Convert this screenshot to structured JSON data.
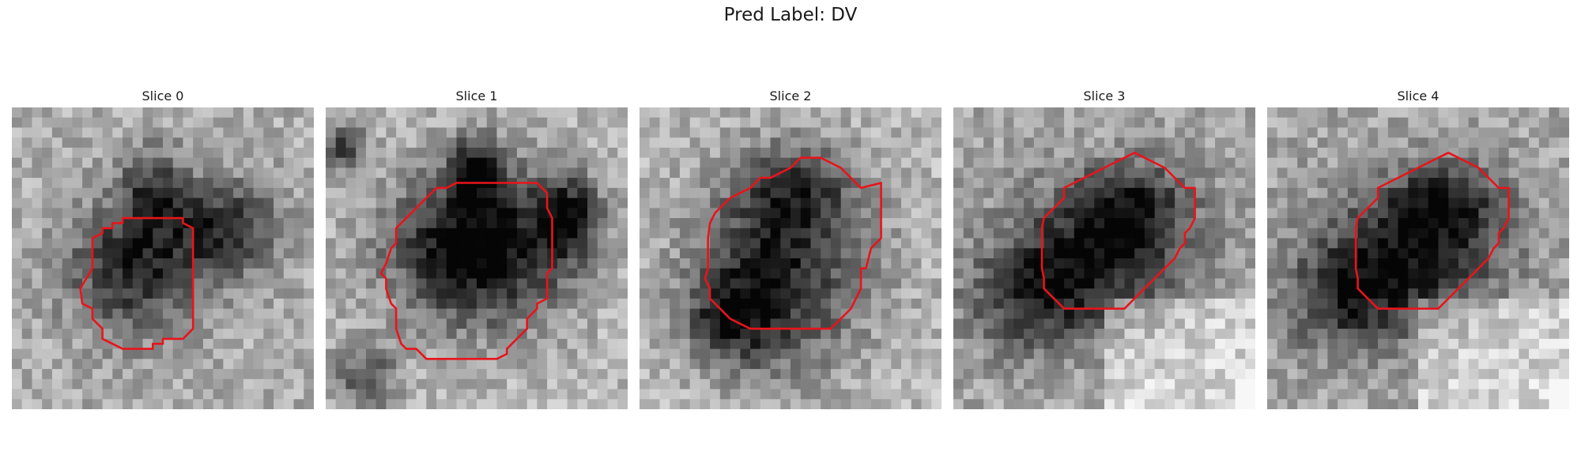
{
  "figure": {
    "title": "Pred Label: DV"
  },
  "panels": [
    {
      "title": "Slice 0"
    },
    {
      "title": "Slice 1"
    },
    {
      "title": "Slice 2"
    },
    {
      "title": "Slice 3"
    },
    {
      "title": "Slice 4"
    }
  ],
  "colors": {
    "contour": "#e8141b",
    "background": "#ffffff"
  }
}
